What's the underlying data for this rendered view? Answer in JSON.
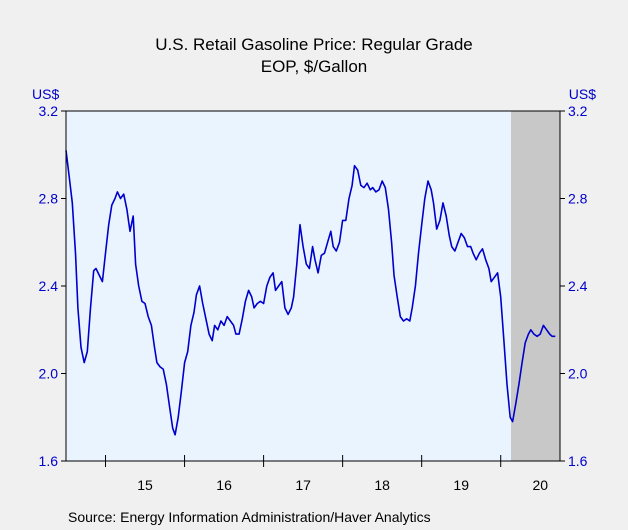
{
  "chart_data": {
    "type": "line",
    "title": "U.S. Retail Gasoline Price: Regular Grade",
    "subtitle": "EOP, $/Gallon",
    "left_unit_label": "US$",
    "right_unit_label": "US$",
    "source": "Source:  Energy Information Administration/Haver Analytics",
    "ylim": [
      1.6,
      3.2
    ],
    "yticks": [
      "3.2",
      "2.8",
      "2.4",
      "2.0",
      "1.6"
    ],
    "ytick_values": [
      3.2,
      2.8,
      2.4,
      2.0,
      1.6
    ],
    "xlim": [
      2014.5,
      2020.75
    ],
    "xtick_labels": [
      "15",
      "16",
      "17",
      "18",
      "19",
      "20"
    ],
    "xtick_positions": [
      2015.5,
      2016.5,
      2017.5,
      2018.5,
      2019.5,
      2020.5
    ],
    "recession_shading": [
      2020.13,
      2020.75
    ],
    "colors": {
      "line": "#0000cc",
      "plot_bg": "#eaf4ff",
      "recession": "#c8c8c8",
      "axis_text": "#0000cc"
    },
    "series": [
      {
        "x": [
          2014.5,
          2014.54,
          2014.58,
          2014.62,
          2014.65,
          2014.69,
          2014.73,
          2014.77,
          2014.81,
          2014.85,
          2014.88,
          2014.92,
          2014.96,
          2015.0,
          2015.04,
          2015.08,
          2015.12,
          2015.15,
          2015.19,
          2015.23,
          2015.27,
          2015.31,
          2015.35,
          2015.38,
          2015.42,
          2015.46,
          2015.5,
          2015.54,
          2015.58,
          2015.62,
          2015.65,
          2015.69,
          2015.73,
          2015.77,
          2015.81,
          2015.85,
          2015.88,
          2015.92,
          2015.96,
          2016.0,
          2016.04,
          2016.08,
          2016.12,
          2016.15,
          2016.19,
          2016.23,
          2016.27,
          2016.31,
          2016.35,
          2016.38,
          2016.42,
          2016.46,
          2016.5,
          2016.54,
          2016.58,
          2016.62,
          2016.65,
          2016.69,
          2016.73,
          2016.77,
          2016.81,
          2016.85,
          2016.88,
          2016.92,
          2016.96,
          2017.0,
          2017.04,
          2017.08,
          2017.12,
          2017.15,
          2017.19,
          2017.23,
          2017.27,
          2017.31,
          2017.35,
          2017.38,
          2017.42,
          2017.46,
          2017.5,
          2017.54,
          2017.58,
          2017.62,
          2017.65,
          2017.69,
          2017.73,
          2017.77,
          2017.81,
          2017.85,
          2017.88,
          2017.92,
          2017.96,
          2018.0,
          2018.04,
          2018.08,
          2018.12,
          2018.15,
          2018.19,
          2018.23,
          2018.27,
          2018.31,
          2018.35,
          2018.38,
          2018.42,
          2018.46,
          2018.5,
          2018.54,
          2018.58,
          2018.62,
          2018.65,
          2018.69,
          2018.73,
          2018.77,
          2018.81,
          2018.85,
          2018.88,
          2018.92,
          2018.96,
          2019.0,
          2019.04,
          2019.08,
          2019.12,
          2019.15,
          2019.19,
          2019.23,
          2019.27,
          2019.31,
          2019.35,
          2019.38,
          2019.42,
          2019.46,
          2019.5,
          2019.54,
          2019.58,
          2019.62,
          2019.65,
          2019.69,
          2019.73,
          2019.77,
          2019.81,
          2019.85,
          2019.88,
          2019.92,
          2019.96,
          2020.0,
          2020.04,
          2020.08,
          2020.12,
          2020.15,
          2020.19,
          2020.23,
          2020.27,
          2020.31,
          2020.35,
          2020.38,
          2020.42,
          2020.46,
          2020.5,
          2020.54,
          2020.58,
          2020.62,
          2020.65,
          2020.69
        ],
        "y": [
          3.02,
          2.9,
          2.78,
          2.55,
          2.3,
          2.12,
          2.05,
          2.1,
          2.3,
          2.47,
          2.48,
          2.45,
          2.42,
          2.55,
          2.68,
          2.77,
          2.8,
          2.83,
          2.8,
          2.82,
          2.75,
          2.65,
          2.72,
          2.5,
          2.4,
          2.33,
          2.32,
          2.26,
          2.22,
          2.12,
          2.05,
          2.03,
          2.02,
          1.95,
          1.85,
          1.75,
          1.72,
          1.8,
          1.92,
          2.05,
          2.1,
          2.22,
          2.28,
          2.36,
          2.4,
          2.32,
          2.25,
          2.18,
          2.15,
          2.22,
          2.2,
          2.24,
          2.22,
          2.26,
          2.24,
          2.22,
          2.18,
          2.18,
          2.25,
          2.33,
          2.38,
          2.35,
          2.3,
          2.32,
          2.33,
          2.32,
          2.4,
          2.44,
          2.46,
          2.38,
          2.4,
          2.42,
          2.3,
          2.27,
          2.3,
          2.35,
          2.5,
          2.68,
          2.58,
          2.5,
          2.48,
          2.58,
          2.52,
          2.46,
          2.54,
          2.55,
          2.6,
          2.65,
          2.58,
          2.56,
          2.6,
          2.7,
          2.7,
          2.8,
          2.86,
          2.95,
          2.93,
          2.86,
          2.85,
          2.87,
          2.84,
          2.85,
          2.83,
          2.84,
          2.88,
          2.85,
          2.75,
          2.6,
          2.45,
          2.35,
          2.26,
          2.24,
          2.25,
          2.24,
          2.3,
          2.4,
          2.55,
          2.68,
          2.8,
          2.88,
          2.84,
          2.78,
          2.66,
          2.7,
          2.78,
          2.72,
          2.63,
          2.58,
          2.56,
          2.6,
          2.64,
          2.62,
          2.58,
          2.58,
          2.55,
          2.52,
          2.55,
          2.57,
          2.52,
          2.48,
          2.42,
          2.44,
          2.46,
          2.35,
          2.15,
          1.95,
          1.8,
          1.78,
          1.86,
          1.95,
          2.05,
          2.14,
          2.18,
          2.2,
          2.18,
          2.17,
          2.18,
          2.22,
          2.2,
          2.18,
          2.17,
          2.17
        ]
      }
    ]
  }
}
